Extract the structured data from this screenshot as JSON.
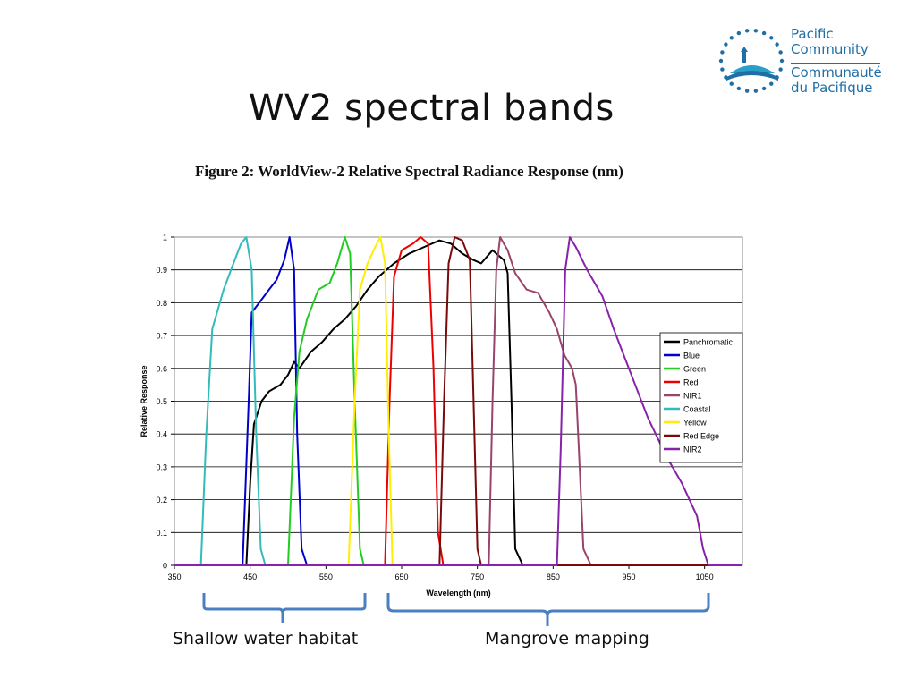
{
  "slide": {
    "title": "WV2 spectral bands",
    "figure_caption": "Figure 2: WorldView-2 Relative Spectral Radiance Response (nm)",
    "logo_lines_en": [
      "Pacific",
      "Community"
    ],
    "logo_lines_fr": [
      "Communauté",
      "du Pacifique"
    ],
    "annotation_left": "Shallow water habitat",
    "annotation_right": "Mangrove mapping"
  },
  "chart_data": {
    "type": "line",
    "xlabel": "Wavelength (nm)",
    "ylabel": "Relative Response",
    "xlim": [
      350,
      1100
    ],
    "ylim": [
      0,
      1
    ],
    "xticks": [
      350,
      450,
      550,
      650,
      750,
      850,
      950,
      1050
    ],
    "yticks": [
      0,
      0.1,
      0.2,
      0.3,
      0.4,
      0.5,
      0.6,
      0.7,
      0.8,
      0.9,
      1
    ],
    "grid": "horizontal",
    "legend_position": "right",
    "series": [
      {
        "name": "Panchromatic",
        "color": "#000000",
        "points": [
          [
            445,
            0
          ],
          [
            450,
            0.25
          ],
          [
            455,
            0.43
          ],
          [
            465,
            0.5
          ],
          [
            475,
            0.53
          ],
          [
            490,
            0.55
          ],
          [
            500,
            0.58
          ],
          [
            508,
            0.62
          ],
          [
            515,
            0.6
          ],
          [
            530,
            0.65
          ],
          [
            545,
            0.68
          ],
          [
            560,
            0.72
          ],
          [
            575,
            0.75
          ],
          [
            590,
            0.79
          ],
          [
            605,
            0.84
          ],
          [
            620,
            0.88
          ],
          [
            640,
            0.92
          ],
          [
            660,
            0.95
          ],
          [
            680,
            0.97
          ],
          [
            700,
            0.99
          ],
          [
            715,
            0.98
          ],
          [
            730,
            0.95
          ],
          [
            745,
            0.93
          ],
          [
            755,
            0.92
          ],
          [
            770,
            0.96
          ],
          [
            785,
            0.93
          ],
          [
            790,
            0.89
          ],
          [
            795,
            0.5
          ],
          [
            800,
            0.05
          ],
          [
            810,
            0
          ]
        ]
      },
      {
        "name": "Blue",
        "color": "#0000cc",
        "points": [
          [
            440,
            0
          ],
          [
            448,
            0.5
          ],
          [
            452,
            0.77
          ],
          [
            462,
            0.8
          ],
          [
            475,
            0.84
          ],
          [
            485,
            0.87
          ],
          [
            495,
            0.93
          ],
          [
            502,
            1.0
          ],
          [
            508,
            0.9
          ],
          [
            512,
            0.4
          ],
          [
            518,
            0.05
          ],
          [
            525,
            0
          ]
        ]
      },
      {
        "name": "Green",
        "color": "#22cc22",
        "points": [
          [
            500,
            0
          ],
          [
            508,
            0.45
          ],
          [
            515,
            0.65
          ],
          [
            525,
            0.75
          ],
          [
            540,
            0.84
          ],
          [
            555,
            0.86
          ],
          [
            565,
            0.92
          ],
          [
            575,
            1.0
          ],
          [
            582,
            0.95
          ],
          [
            588,
            0.5
          ],
          [
            595,
            0.05
          ],
          [
            600,
            0
          ]
        ]
      },
      {
        "name": "Red",
        "color": "#ee0000",
        "points": [
          [
            628,
            0
          ],
          [
            634,
            0.5
          ],
          [
            640,
            0.88
          ],
          [
            650,
            0.96
          ],
          [
            665,
            0.98
          ],
          [
            675,
            1.0
          ],
          [
            685,
            0.98
          ],
          [
            692,
            0.6
          ],
          [
            698,
            0.1
          ],
          [
            705,
            0
          ]
        ]
      },
      {
        "name": "NIR1",
        "color": "#99446a",
        "points": [
          [
            765,
            0
          ],
          [
            770,
            0.5
          ],
          [
            775,
            0.9
          ],
          [
            780,
            1.0
          ],
          [
            790,
            0.96
          ],
          [
            800,
            0.89
          ],
          [
            815,
            0.84
          ],
          [
            830,
            0.83
          ],
          [
            845,
            0.77
          ],
          [
            855,
            0.72
          ],
          [
            865,
            0.64
          ],
          [
            875,
            0.6
          ],
          [
            880,
            0.55
          ],
          [
            885,
            0.3
          ],
          [
            890,
            0.05
          ],
          [
            900,
            0
          ]
        ]
      },
      {
        "name": "Coastal",
        "color": "#33bbbb",
        "points": [
          [
            385,
            0
          ],
          [
            392,
            0.4
          ],
          [
            400,
            0.72
          ],
          [
            415,
            0.84
          ],
          [
            428,
            0.92
          ],
          [
            438,
            0.98
          ],
          [
            445,
            1.0
          ],
          [
            452,
            0.9
          ],
          [
            458,
            0.4
          ],
          [
            464,
            0.05
          ],
          [
            470,
            0
          ]
        ]
      },
      {
        "name": "Yellow",
        "color": "#ffee00",
        "points": [
          [
            580,
            0
          ],
          [
            588,
            0.5
          ],
          [
            595,
            0.84
          ],
          [
            605,
            0.92
          ],
          [
            615,
            0.97
          ],
          [
            622,
            1.0
          ],
          [
            628,
            0.92
          ],
          [
            633,
            0.4
          ],
          [
            638,
            0
          ]
        ]
      },
      {
        "name": "Red Edge",
        "color": "#7a0a0a",
        "points": [
          [
            700,
            0
          ],
          [
            706,
            0.5
          ],
          [
            712,
            0.92
          ],
          [
            720,
            1.0
          ],
          [
            730,
            0.99
          ],
          [
            740,
            0.93
          ],
          [
            745,
            0.5
          ],
          [
            750,
            0.05
          ],
          [
            755,
            0
          ]
        ]
      },
      {
        "name": "NIR2",
        "color": "#8822aa",
        "points": [
          [
            855,
            0
          ],
          [
            860,
            0.35
          ],
          [
            866,
            0.9
          ],
          [
            872,
            1.0
          ],
          [
            880,
            0.97
          ],
          [
            895,
            0.9
          ],
          [
            915,
            0.82
          ],
          [
            930,
            0.72
          ],
          [
            950,
            0.6
          ],
          [
            975,
            0.45
          ],
          [
            1000,
            0.33
          ],
          [
            1020,
            0.25
          ],
          [
            1040,
            0.15
          ],
          [
            1048,
            0.05
          ],
          [
            1055,
            0
          ]
        ]
      }
    ]
  }
}
